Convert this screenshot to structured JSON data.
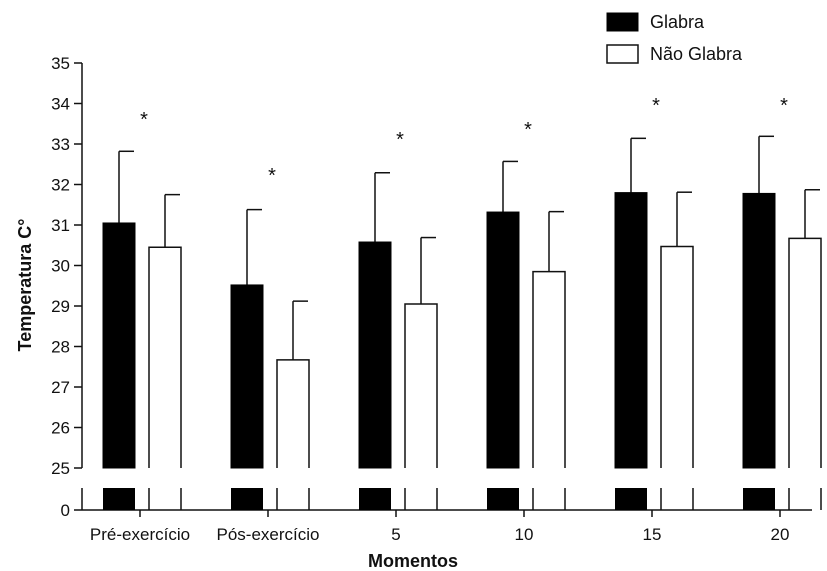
{
  "chart_data": {
    "type": "bar",
    "title": "",
    "xlabel": "Momentos",
    "ylabel": "Temperatura C°",
    "ylim": [
      25,
      35
    ],
    "yticks": [
      "25",
      "26",
      "27",
      "28",
      "29",
      "30",
      "31",
      "32",
      "33",
      "34",
      "35"
    ],
    "ybreak_ticks": [
      "0"
    ],
    "categories": [
      "Pré-exercício",
      "Pós-exercício",
      "5",
      "10",
      "15",
      "20"
    ],
    "series": [
      {
        "name": "Glabra",
        "color": "#000000",
        "values": [
          31.05,
          29.52,
          30.58,
          31.32,
          31.8,
          31.78
        ],
        "errors": [
          1.77,
          1.86,
          1.71,
          1.25,
          1.34,
          1.41
        ]
      },
      {
        "name": "Não Glabra",
        "color": "#ffffff",
        "values": [
          30.45,
          27.67,
          29.05,
          29.85,
          30.47,
          30.67
        ],
        "errors": [
          1.3,
          1.45,
          1.64,
          1.48,
          1.34,
          1.2
        ]
      }
    ],
    "annotations": [
      "*",
      "*",
      "*",
      "*",
      "*",
      "*"
    ],
    "legend": "top-right",
    "grid": false
  }
}
